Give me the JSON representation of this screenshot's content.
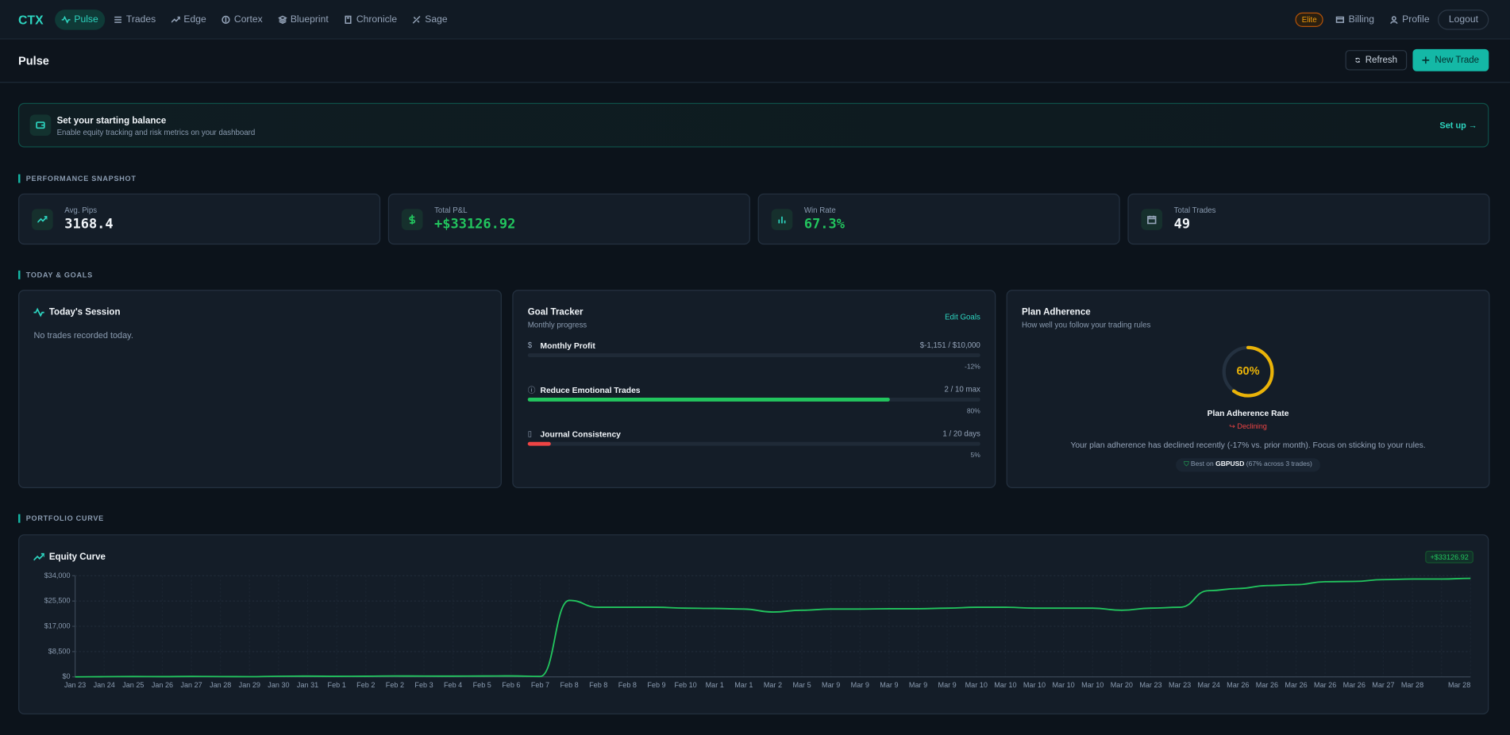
{
  "nav": {
    "brand": "CTX",
    "items": [
      "Pulse",
      "Trades",
      "Edge",
      "Cortex",
      "Blueprint",
      "Chronicle",
      "Sage"
    ],
    "badge": "Elite",
    "right": [
      "Billing",
      "Profile",
      "Logout"
    ]
  },
  "header": {
    "title": "Pulse",
    "buttons": [
      "Refresh",
      "New Trade"
    ]
  },
  "banner": {
    "title": "Set your starting balance",
    "subtitle": "Enable equity tracking and risk metrics on your dashboard",
    "action": "Set up →"
  },
  "sections": [
    "PERFORMANCE SNAPSHOT",
    "TODAY & GOALS",
    "PORTFOLIO CURVE"
  ],
  "stats": [
    {
      "label": "Avg. Pips",
      "value": 3168.4
    },
    {
      "label": "Total P&L",
      "value": "+$33126.92"
    },
    {
      "label": "Win Rate",
      "value": "67.3%"
    },
    {
      "label": "Total Trades",
      "value": 49
    }
  ],
  "session": {
    "title": "Today's Session",
    "empty": "No trades recorded today."
  },
  "goals": {
    "title": "Goal Tracker",
    "subtitle": "Monthly progress",
    "action": "Edit Goals",
    "items": [
      {
        "name": "Monthly Profit",
        "target": "$-1,151 / $10,000",
        "progress": -12,
        "progress_label": "-12%",
        "color": "#22c55e"
      },
      {
        "name": "Reduce Emotional Trades",
        "target": "2 / 10 max",
        "progress": 80,
        "progress_label": "80%",
        "color": "#22c55e"
      },
      {
        "name": "Journal Consistency",
        "target": "1 / 20 days",
        "progress": 5,
        "progress_label": "5%",
        "color": "#ef4444"
      }
    ]
  },
  "adherence": {
    "title": "Plan Adherence",
    "subtitle": "How well you follow your trading rules",
    "value": 60,
    "value_label": "60%",
    "label": "Plan Adherence Rate",
    "trend": "Declining",
    "message": "Your plan adherence has declined recently (-17% vs. prior month). Focus on sticking to your rules.",
    "best_prefix": "Best on",
    "best_pair": "GBPUSD",
    "best_detail": "(67% across 3 trades)"
  },
  "chart_data": {
    "type": "line",
    "title": "Equity Curve",
    "badge": "+$33126.92",
    "color": "#22c55e",
    "grid": true,
    "categories": [
      "Jan 23",
      "Jan 24",
      "Jan 25",
      "Jan 26",
      "Jan 27",
      "Jan 28",
      "Jan 29",
      "Jan 30",
      "Jan 31",
      "Feb 1",
      "Feb 2",
      "Feb 2",
      "Feb 3",
      "Feb 4",
      "Feb 5",
      "Feb 6",
      "Feb 7",
      "Feb 8",
      "Feb 8",
      "Feb 8",
      "Feb 9",
      "Feb 10",
      "Mar 1",
      "Mar 1",
      "Mar 2",
      "Mar 5",
      "Mar 9",
      "Mar 9",
      "Mar 9",
      "Mar 9",
      "Mar 9",
      "Mar 10",
      "Mar 10",
      "Mar 10",
      "Mar 10",
      "Mar 10",
      "Mar 20",
      "Mar 23",
      "Mar 23",
      "Mar 24",
      "Mar 26",
      "Mar 26",
      "Mar 26",
      "Mar 26",
      "Mar 26",
      "Mar 27",
      "Mar 28",
      null,
      "Mar 28"
    ],
    "values": [
      0,
      60,
      120,
      80,
      150,
      100,
      60,
      200,
      250,
      180,
      220,
      300,
      260,
      240,
      280,
      320,
      150,
      25700,
      23400,
      23400,
      23400,
      23100,
      23000,
      22800,
      21800,
      22400,
      22800,
      22800,
      22900,
      22900,
      23100,
      23400,
      23400,
      23100,
      23100,
      23100,
      22400,
      23100,
      23400,
      29000,
      29700,
      30700,
      31000,
      32000,
      32100,
      32700,
      32900,
      32900,
      33127
    ],
    "ylim": [
      0,
      34000
    ],
    "yticks": [
      {
        "value": 0,
        "label": "$0"
      },
      {
        "value": 8500,
        "label": "$8,500"
      },
      {
        "value": 17000,
        "label": "$17,000"
      },
      {
        "value": 25500,
        "label": "$25,500"
      },
      {
        "value": 34000,
        "label": "$34,000"
      }
    ]
  }
}
